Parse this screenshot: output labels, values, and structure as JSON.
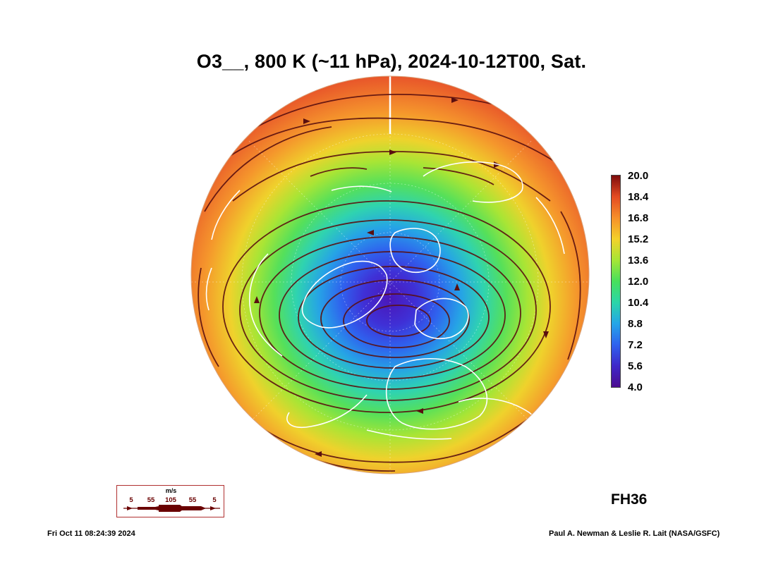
{
  "title": "O3__, 800 K (~11 hPa), 2024-10-12T00, Sat.",
  "colorbar": {
    "labels": [
      "20.0",
      "18.4",
      "16.8",
      "15.2",
      "13.6",
      "12.0",
      "10.4",
      "8.8",
      "7.2",
      "5.6",
      "4.0"
    ],
    "min": 4.0,
    "max": 20.0,
    "colors": [
      "#4b0c8f",
      "#3f27c9",
      "#2f62ee",
      "#25a6e8",
      "#2bd6a8",
      "#47e05b",
      "#a6e635",
      "#f4d12a",
      "#f6902a",
      "#e44b22",
      "#7e0c0c"
    ]
  },
  "forecast_hour": "FH36",
  "wind_legend": {
    "unit": "m/s",
    "values": [
      "5",
      "55",
      "105",
      "55",
      "5"
    ],
    "color": "#6a0000"
  },
  "footer": {
    "timestamp": "Fri Oct 11 08:24:39 2024",
    "credit": "Paul A. Newman & Leslie R. Lait (NASA/GSFC)"
  },
  "map": {
    "projection": "north-polar-stereographic",
    "field": "ozone mixing ratio",
    "streamline_color": "#5a0f0f",
    "coastline_color": "#ffffff"
  }
}
